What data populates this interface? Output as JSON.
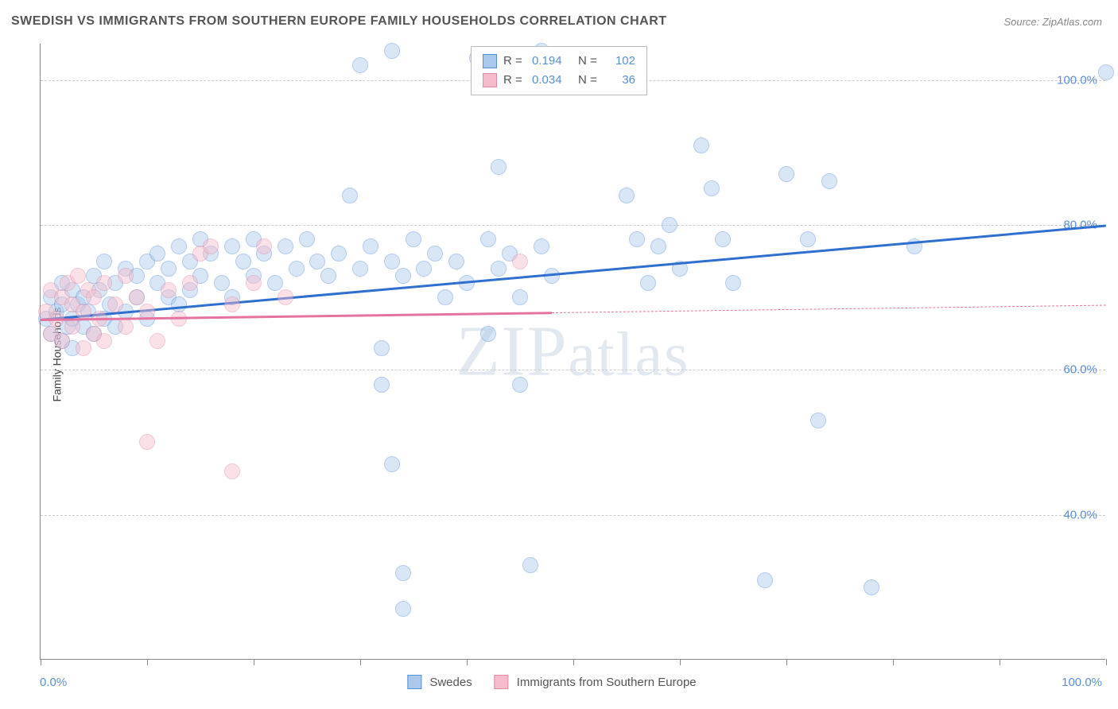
{
  "title": "SWEDISH VS IMMIGRANTS FROM SOUTHERN EUROPE FAMILY HOUSEHOLDS CORRELATION CHART",
  "source_label": "Source: ZipAtlas.com",
  "y_axis_label": "Family Households",
  "watermark": "ZIPatlas",
  "chart": {
    "type": "scatter",
    "background_color": "#ffffff",
    "grid_color": "#cccccc",
    "axis_color": "#888888",
    "tick_label_color": "#5b8fd6",
    "axis_label_color": "#444444",
    "xlim": [
      0,
      100
    ],
    "ylim": [
      20,
      105
    ],
    "x_tick_positions": [
      0,
      10,
      20,
      30,
      40,
      50,
      60,
      70,
      80,
      90,
      100
    ],
    "x_axis_start_label": "0.0%",
    "x_axis_end_label": "100.0%",
    "y_gridlines": [
      {
        "value": 40,
        "label": "40.0%"
      },
      {
        "value": 60,
        "label": "60.0%"
      },
      {
        "value": 80,
        "label": "80.0%"
      },
      {
        "value": 100,
        "label": "100.0%"
      }
    ],
    "marker_radius": 10,
    "marker_opacity": 0.45,
    "series": [
      {
        "name": "Swedes",
        "fill_color": "#a9c8ec",
        "stroke_color": "#5b8fd6",
        "line_color": "#2f6fd0",
        "r_value": "0.194",
        "n_value": "102",
        "points": [
          [
            0.5,
            67
          ],
          [
            1,
            70
          ],
          [
            1,
            65
          ],
          [
            1.5,
            68
          ],
          [
            2,
            72
          ],
          [
            2,
            64
          ],
          [
            2,
            69
          ],
          [
            2.5,
            66
          ],
          [
            3,
            71
          ],
          [
            3,
            67
          ],
          [
            3,
            63
          ],
          [
            3.5,
            69
          ],
          [
            4,
            70
          ],
          [
            4,
            66
          ],
          [
            4.5,
            68
          ],
          [
            5,
            73
          ],
          [
            5,
            65
          ],
          [
            5.5,
            71
          ],
          [
            6,
            67
          ],
          [
            6,
            75
          ],
          [
            6.5,
            69
          ],
          [
            7,
            72
          ],
          [
            7,
            66
          ],
          [
            8,
            74
          ],
          [
            8,
            68
          ],
          [
            9,
            73
          ],
          [
            9,
            70
          ],
          [
            10,
            75
          ],
          [
            10,
            67
          ],
          [
            11,
            72
          ],
          [
            11,
            76
          ],
          [
            12,
            70
          ],
          [
            12,
            74
          ],
          [
            13,
            77
          ],
          [
            13,
            69
          ],
          [
            14,
            75
          ],
          [
            14,
            71
          ],
          [
            15,
            78
          ],
          [
            15,
            73
          ],
          [
            16,
            76
          ],
          [
            17,
            72
          ],
          [
            18,
            77
          ],
          [
            18,
            70
          ],
          [
            19,
            75
          ],
          [
            20,
            78
          ],
          [
            20,
            73
          ],
          [
            21,
            76
          ],
          [
            22,
            72
          ],
          [
            23,
            77
          ],
          [
            24,
            74
          ],
          [
            25,
            78
          ],
          [
            26,
            75
          ],
          [
            27,
            73
          ],
          [
            28,
            76
          ],
          [
            29,
            84
          ],
          [
            30,
            74
          ],
          [
            30,
            102
          ],
          [
            31,
            77
          ],
          [
            32,
            63
          ],
          [
            32,
            58
          ],
          [
            33,
            47
          ],
          [
            33,
            75
          ],
          [
            33,
            104
          ],
          [
            34,
            73
          ],
          [
            34,
            32
          ],
          [
            34,
            27
          ],
          [
            35,
            78
          ],
          [
            36,
            74
          ],
          [
            37,
            76
          ],
          [
            38,
            70
          ],
          [
            39,
            75
          ],
          [
            40,
            72
          ],
          [
            41,
            103
          ],
          [
            42,
            78
          ],
          [
            42,
            65
          ],
          [
            43,
            74
          ],
          [
            43,
            88
          ],
          [
            44,
            76
          ],
          [
            45,
            70
          ],
          [
            45,
            58
          ],
          [
            46,
            33
          ],
          [
            47,
            77
          ],
          [
            47,
            104
          ],
          [
            48,
            73
          ],
          [
            55,
            84
          ],
          [
            56,
            78
          ],
          [
            57,
            72
          ],
          [
            58,
            77
          ],
          [
            59,
            80
          ],
          [
            60,
            74
          ],
          [
            62,
            91
          ],
          [
            63,
            85
          ],
          [
            64,
            78
          ],
          [
            65,
            72
          ],
          [
            68,
            31
          ],
          [
            70,
            87
          ],
          [
            72,
            78
          ],
          [
            73,
            53
          ],
          [
            74,
            86
          ],
          [
            78,
            30
          ],
          [
            82,
            77
          ],
          [
            100,
            101
          ]
        ],
        "trend": {
          "x1": 0,
          "y1": 67,
          "x2": 100,
          "y2": 80,
          "solid_until_x": 100
        }
      },
      {
        "name": "Immigrants from Southern Europe",
        "fill_color": "#f5bccb",
        "stroke_color": "#e08aa3",
        "line_color": "#e573a0",
        "r_value": "0.034",
        "n_value": "36",
        "points": [
          [
            0.5,
            68
          ],
          [
            1,
            65
          ],
          [
            1,
            71
          ],
          [
            1.5,
            67
          ],
          [
            2,
            70
          ],
          [
            2,
            64
          ],
          [
            2.5,
            72
          ],
          [
            3,
            66
          ],
          [
            3,
            69
          ],
          [
            3.5,
            73
          ],
          [
            4,
            63
          ],
          [
            4,
            68
          ],
          [
            4.5,
            71
          ],
          [
            5,
            65
          ],
          [
            5,
            70
          ],
          [
            5.5,
            67
          ],
          [
            6,
            72
          ],
          [
            6,
            64
          ],
          [
            7,
            69
          ],
          [
            8,
            66
          ],
          [
            8,
            73
          ],
          [
            9,
            70
          ],
          [
            10,
            50
          ],
          [
            10,
            68
          ],
          [
            11,
            64
          ],
          [
            12,
            71
          ],
          [
            13,
            67
          ],
          [
            14,
            72
          ],
          [
            15,
            76
          ],
          [
            16,
            77
          ],
          [
            18,
            46
          ],
          [
            18,
            69
          ],
          [
            20,
            72
          ],
          [
            21,
            77
          ],
          [
            23,
            70
          ],
          [
            45,
            75
          ]
        ],
        "trend": {
          "x1": 0,
          "y1": 67,
          "x2": 100,
          "y2": 69,
          "solid_until_x": 48
        }
      }
    ]
  },
  "legend_top": {
    "r_label": "R =",
    "n_label": "N ="
  },
  "legend_bottom": {
    "items": [
      "Swedes",
      "Immigrants from Southern Europe"
    ]
  }
}
